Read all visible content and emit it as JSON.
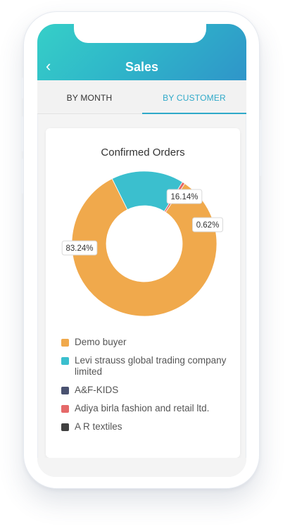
{
  "header": {
    "title": "Sales",
    "back_icon": "chevron-left-icon"
  },
  "tabs": [
    {
      "label": "BY MONTH",
      "active": false
    },
    {
      "label": "BY CUSTOMER",
      "active": true
    }
  ],
  "colors": {
    "accent": "#2fa9c9",
    "header_start": "#36cfc8",
    "header_end": "#2f95c9"
  },
  "chart_data": {
    "type": "pie",
    "title": "Confirmed Orders",
    "series": [
      {
        "name": "Demo buyer",
        "value": 83.24,
        "label": "83.24%",
        "color": "#f0a94c"
      },
      {
        "name": "Levi strauss global trading company limited",
        "value": 16.14,
        "label": "16.14%",
        "color": "#3bbfce"
      },
      {
        "name": "A&F-KIDS",
        "value": 0,
        "label": "",
        "color": "#4a5270"
      },
      {
        "name": "Adiya birla fashion and retail ltd.",
        "value": 0.62,
        "label": "0.62%",
        "color": "#e56969"
      },
      {
        "name": "A R textiles",
        "value": 0,
        "label": "",
        "color": "#404040"
      }
    ],
    "legend_placement": "bottom"
  }
}
